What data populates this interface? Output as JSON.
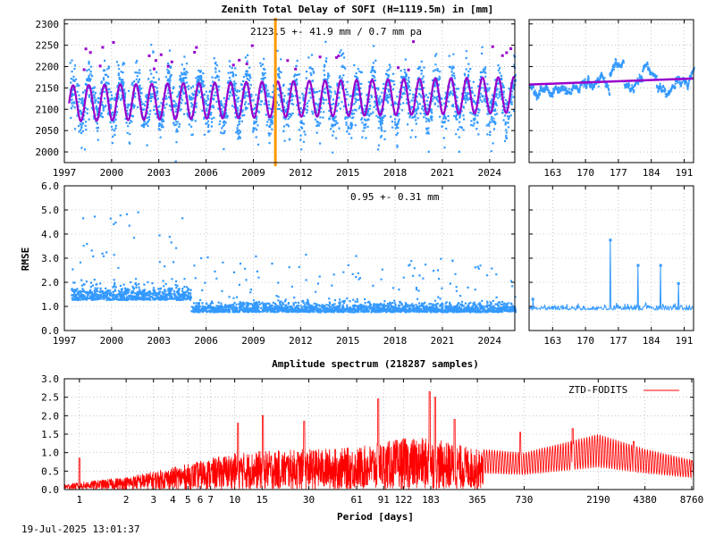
{
  "title": "Zenith Total Delay of SOFI (H=1119.5m) in [mm]",
  "timestamp": "19-Jul-2025 13:01:37",
  "colors": {
    "data": "#3399ff",
    "model": "#9900cc",
    "event": "#ff9900",
    "spectrum": "#ff0000",
    "fit_short": "#9900cc"
  },
  "chart_data": [
    {
      "id": "ztd_long",
      "type": "scatter",
      "annotation": "2123.5 +-  41.9 mm /  0.7 mm pa",
      "xlim": [
        1997.0,
        2025.6
      ],
      "ylim": [
        1975,
        2310
      ],
      "x_ticks": [
        "1997",
        "2000",
        "2003",
        "2006",
        "2009",
        "2012",
        "2015",
        "2018",
        "2021",
        "2024"
      ],
      "x_tick_values": [
        1997,
        2000,
        2003,
        2006,
        2009,
        2012,
        2015,
        2018,
        2021,
        2024
      ],
      "y_ticks": [
        "2000",
        "2050",
        "2100",
        "2150",
        "2200",
        "2250",
        "2300"
      ],
      "y_tick_values": [
        2000,
        2050,
        2100,
        2150,
        2200,
        2250,
        2300
      ],
      "series": [
        {
          "kind": "observations",
          "mean": 2123.5,
          "seasonal_amplitude": 42,
          "scatter": 55,
          "x_range": [
            1997.3,
            2025.6
          ]
        },
        {
          "kind": "model",
          "mean": 2123.5,
          "seasonal_amplitude": 42,
          "trend_mm_pa": 0.7
        }
      ],
      "event_line_x": 2010.4,
      "grid": true
    },
    {
      "id": "ztd_short",
      "type": "scatter",
      "xlim": [
        158,
        193
      ],
      "ylim": [
        1975,
        2310
      ],
      "x_ticks": [
        "163",
        "170",
        "177",
        "184",
        "191"
      ],
      "x_tick_values": [
        163,
        170,
        177,
        184,
        191
      ],
      "fit": {
        "start": [
          158,
          2158
        ],
        "end": [
          193,
          2172
        ]
      },
      "grid": true
    },
    {
      "id": "rmse_long",
      "type": "scatter",
      "ylabel": "RMSE",
      "annotation": "0.95 +-  0.31 mm",
      "xlim": [
        1997.0,
        2025.6
      ],
      "ylim": [
        0.0,
        6.0
      ],
      "x_ticks": [
        "1997",
        "2000",
        "2003",
        "2006",
        "2009",
        "2012",
        "2015",
        "2018",
        "2021",
        "2024"
      ],
      "x_tick_values": [
        1997,
        2000,
        2003,
        2006,
        2009,
        2012,
        2015,
        2018,
        2021,
        2024
      ],
      "y_ticks": [
        "0.0",
        "1.0",
        "2.0",
        "3.0",
        "4.0",
        "5.0",
        "6.0"
      ],
      "y_tick_values": [
        0,
        1,
        2,
        3,
        4,
        5,
        6
      ],
      "mean": 0.95,
      "std": 0.31,
      "grid": true
    },
    {
      "id": "rmse_short",
      "type": "line",
      "xlim": [
        158,
        193
      ],
      "ylim": [
        0.0,
        6.0
      ],
      "x_ticks": [
        "163",
        "170",
        "177",
        "184",
        "191"
      ],
      "x_tick_values": [
        163,
        170,
        177,
        184,
        191
      ],
      "spikes": [
        [
          175.3,
          3.75
        ],
        [
          181.2,
          2.7
        ],
        [
          186.0,
          2.7
        ],
        [
          189.8,
          1.95
        ],
        [
          158.8,
          1.3
        ]
      ],
      "baseline": 0.85,
      "grid": true
    },
    {
      "id": "spectrum",
      "type": "line",
      "title": "Amplitude spectrum (218287 samples)",
      "xlabel": "Period [days]",
      "xscale": "log",
      "xlim": [
        0.8,
        9000
      ],
      "ylim": [
        0.0,
        3.0
      ],
      "x_ticks": [
        "1",
        "2",
        "3",
        "4",
        "5",
        "6",
        "7",
        "10",
        "15",
        "30",
        "61",
        "91",
        "122",
        "183",
        "365",
        "730",
        "2190",
        "4380",
        "8760"
      ],
      "x_tick_values": [
        1,
        2,
        3,
        4,
        5,
        6,
        7,
        10,
        15,
        30,
        61,
        91,
        122,
        183,
        365,
        730,
        2190,
        4380,
        8760
      ],
      "y_ticks": [
        "0.0",
        "0.5",
        "1.0",
        "1.5",
        "2.0",
        "2.5",
        "3.0"
      ],
      "y_tick_values": [
        0,
        0.5,
        1,
        1.5,
        2,
        2.5,
        3
      ],
      "legend": "ZTD-FODITS",
      "legend_position": "top-right",
      "envelope_points": [
        [
          0.8,
          0.15
        ],
        [
          1,
          0.2
        ],
        [
          2,
          0.35
        ],
        [
          3,
          0.5
        ],
        [
          5,
          0.7
        ],
        [
          7,
          0.85
        ],
        [
          10,
          1.0
        ],
        [
          15,
          1.05
        ],
        [
          30,
          1.1
        ],
        [
          61,
          1.15
        ],
        [
          91,
          1.3
        ],
        [
          122,
          1.4
        ],
        [
          183,
          1.4
        ],
        [
          365,
          1.1
        ],
        [
          730,
          1.0
        ],
        [
          2190,
          1.5
        ],
        [
          4380,
          1.1
        ],
        [
          8760,
          0.8
        ]
      ],
      "peaks": [
        [
          1.0,
          0.85
        ],
        [
          10.5,
          1.8
        ],
        [
          15.2,
          2.0
        ],
        [
          28.0,
          1.85
        ],
        [
          84.0,
          2.45
        ],
        [
          180.0,
          2.65
        ],
        [
          195.0,
          2.5
        ],
        [
          260.0,
          1.9
        ],
        [
          690.0,
          1.55
        ],
        [
          1500,
          1.65
        ],
        [
          3700,
          1.3
        ],
        [
          8760,
          0.78
        ]
      ],
      "grid": true
    }
  ]
}
